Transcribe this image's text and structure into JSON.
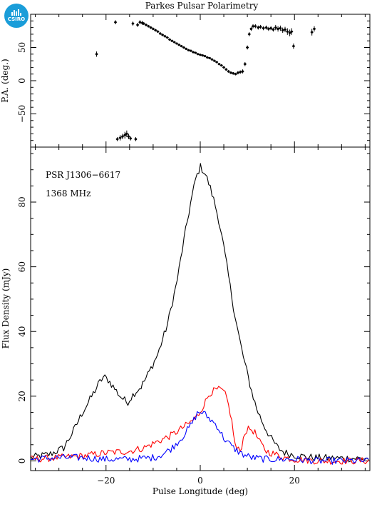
{
  "logo": {
    "text": "CSIRO"
  },
  "title": "Parkes Pulsar Polarimetry",
  "labels": {
    "pulsar": "PSR J1306−6617",
    "frequency": "1368 MHz",
    "xlabel": "Pulse Longitude (deg)",
    "ylabel_top": "P.A. (deg.)",
    "ylabel_bottom": "Flux Density (mJy)"
  },
  "colors": {
    "total": "#000000",
    "linear": "#ff0000",
    "circular": "#0000ff"
  },
  "chart_data": [
    {
      "type": "scatter",
      "panel": "position-angle",
      "xlim": [
        -36,
        36
      ],
      "ylim": [
        -100,
        100
      ],
      "yticks": [
        -50,
        0,
        50
      ],
      "points": [
        [
          -22,
          40,
          4
        ],
        [
          -18,
          88,
          3
        ],
        [
          -17.6,
          -88,
          3
        ],
        [
          -17,
          -86,
          4
        ],
        [
          -16.5,
          -84,
          4
        ],
        [
          -16,
          -82,
          5
        ],
        [
          -15.6,
          -80,
          5
        ],
        [
          -15.2,
          -84,
          4
        ],
        [
          -14.8,
          -87,
          3
        ],
        [
          -14.3,
          86,
          3
        ],
        [
          -13.7,
          -88,
          3
        ],
        [
          -13.3,
          84,
          3
        ],
        [
          -12.8,
          88,
          3
        ],
        [
          -12.3,
          87,
          3
        ],
        [
          -12,
          86,
          2
        ],
        [
          -11.5,
          84,
          2
        ],
        [
          -11,
          82,
          2
        ],
        [
          -10.5,
          80,
          2
        ],
        [
          -10,
          78,
          2
        ],
        [
          -9.5,
          76,
          2
        ],
        [
          -9,
          74,
          2
        ],
        [
          -8.5,
          71,
          2
        ],
        [
          -8,
          69,
          2
        ],
        [
          -7.5,
          67,
          2
        ],
        [
          -7,
          65,
          1.5
        ],
        [
          -6.5,
          62,
          1.5
        ],
        [
          -6,
          60,
          1.5
        ],
        [
          -5.5,
          58,
          1.5
        ],
        [
          -5,
          56,
          1.5
        ],
        [
          -4.5,
          54,
          1.5
        ],
        [
          -4,
          52,
          1.5
        ],
        [
          -3.5,
          50,
          1.5
        ],
        [
          -3,
          48,
          1
        ],
        [
          -2.5,
          46,
          1
        ],
        [
          -2,
          45,
          1
        ],
        [
          -1.5,
          43,
          1
        ],
        [
          -1,
          42,
          1
        ],
        [
          -0.5,
          40,
          1
        ],
        [
          0,
          39,
          1
        ],
        [
          0.5,
          38,
          1
        ],
        [
          1,
          37,
          1
        ],
        [
          1.5,
          35,
          1
        ],
        [
          2,
          34,
          1
        ],
        [
          2.5,
          32,
          1
        ],
        [
          3,
          30,
          1
        ],
        [
          3.5,
          28,
          1.5
        ],
        [
          4,
          25,
          1.5
        ],
        [
          4.5,
          23,
          1.5
        ],
        [
          5,
          20,
          2
        ],
        [
          5.5,
          17,
          2
        ],
        [
          6,
          14,
          2
        ],
        [
          6.5,
          12,
          2
        ],
        [
          7,
          11,
          2
        ],
        [
          7.5,
          10,
          2
        ],
        [
          8,
          12,
          2.5
        ],
        [
          8.5,
          13,
          2.5
        ],
        [
          9,
          14,
          3
        ],
        [
          9.5,
          25,
          3
        ],
        [
          10,
          50,
          3
        ],
        [
          10.4,
          70,
          3
        ],
        [
          10.8,
          78,
          3
        ],
        [
          11.2,
          82,
          3
        ],
        [
          11.7,
          82,
          3
        ],
        [
          12.3,
          80,
          3
        ],
        [
          12.8,
          81,
          3
        ],
        [
          13.4,
          79,
          3
        ],
        [
          14,
          80,
          3
        ],
        [
          14.5,
          78,
          3
        ],
        [
          15,
          79,
          3
        ],
        [
          15.5,
          77,
          3
        ],
        [
          16,
          80,
          4
        ],
        [
          16.5,
          78,
          4
        ],
        [
          17,
          79,
          4
        ],
        [
          17.5,
          76,
          4
        ],
        [
          18,
          77,
          4
        ],
        [
          18.5,
          74,
          5
        ],
        [
          19,
          72,
          5
        ],
        [
          19.4,
          74,
          5
        ],
        [
          19.8,
          52,
          4
        ],
        [
          23.7,
          73,
          5
        ],
        [
          24.2,
          78,
          4
        ]
      ]
    },
    {
      "type": "line",
      "panel": "flux-density",
      "xlim": [
        -36,
        36
      ],
      "ylim": [
        -3,
        97
      ],
      "xticks": [
        -20,
        0,
        20
      ],
      "yticks": [
        0,
        20,
        40,
        60,
        80
      ],
      "series": [
        {
          "key": "total",
          "x": [
            -36,
            -32,
            -29,
            -27,
            -25,
            -23,
            -21.5,
            -20.5,
            -19.5,
            -17,
            -15.5,
            -14,
            -12.5,
            -11,
            -9,
            -7,
            -5,
            -3.5,
            -2,
            -1,
            0,
            1,
            2,
            3,
            4,
            5,
            6,
            7,
            8,
            9,
            10,
            11,
            12,
            13.5,
            15,
            16.5,
            18,
            19.5,
            21,
            24,
            28,
            32,
            36
          ],
          "y": [
            1,
            2,
            4,
            9,
            15,
            20,
            24,
            26,
            25,
            20,
            18,
            21,
            23,
            27,
            33,
            42,
            55,
            68,
            80,
            87,
            91,
            89,
            85,
            80,
            74,
            66,
            57,
            48,
            40,
            33,
            27,
            21,
            16,
            11,
            7,
            4,
            2.5,
            2,
            1.5,
            1,
            0.8,
            0.8,
            0.7
          ]
        },
        {
          "key": "linear",
          "x": [
            -36,
            -30,
            -25,
            -20,
            -15,
            -12,
            -9,
            -6,
            -4,
            -2,
            -0.5,
            1,
            2,
            3.5,
            4.5,
            5.5,
            6.5,
            7.5,
            8.5,
            9.5,
            10.5,
            11.5,
            12.5,
            14,
            16,
            18,
            20,
            25,
            30,
            36
          ],
          "y": [
            0.5,
            1,
            1.5,
            2.5,
            3,
            4,
            6,
            8,
            10,
            12,
            14,
            18,
            21,
            22,
            22,
            20,
            14,
            4,
            3,
            9,
            10,
            9,
            6,
            3,
            2,
            1,
            0.5,
            0,
            0,
            0
          ]
        },
        {
          "key": "circular",
          "x": [
            -36,
            -30,
            -25,
            -20,
            -15,
            -10,
            -8,
            -6,
            -4,
            -2,
            -0.5,
            0.5,
            2,
            3.5,
            5,
            7,
            9,
            11,
            14,
            17,
            20,
            25,
            30,
            36
          ],
          "y": [
            0.5,
            1,
            1,
            0.5,
            0.5,
            1,
            2,
            4,
            7,
            11,
            15,
            15,
            13,
            11,
            7,
            4,
            2,
            1,
            0.5,
            0.5,
            0.5,
            0,
            0,
            0
          ]
        }
      ]
    }
  ]
}
